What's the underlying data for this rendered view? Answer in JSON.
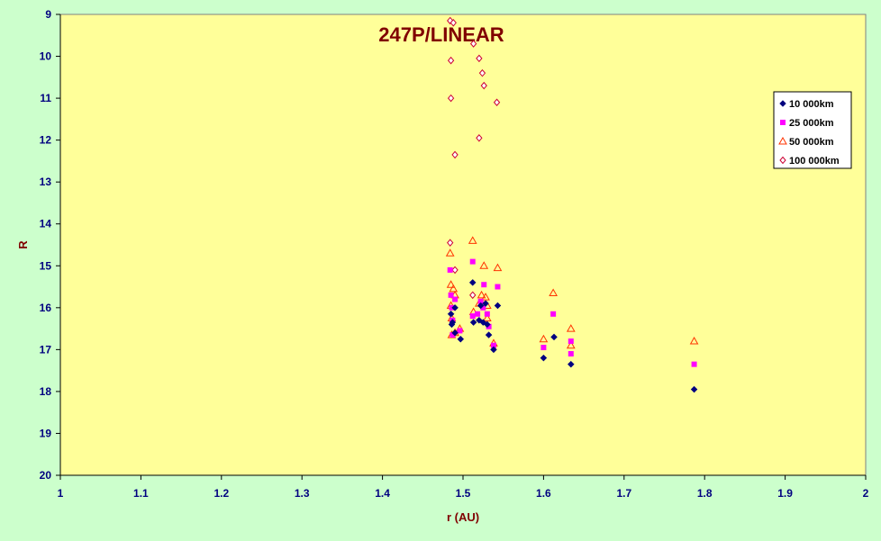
{
  "chart_data": {
    "type": "scatter",
    "title": "247P/LINEAR",
    "xlabel": "r (AU)",
    "ylabel": "R",
    "xlim": [
      1,
      2
    ],
    "ylim": [
      9,
      20
    ],
    "y_inverted": true,
    "x_ticks": [
      "1",
      "1.1",
      "1.2",
      "1.3",
      "1.4",
      "1.5",
      "1.6",
      "1.7",
      "1.8",
      "1.9",
      "2"
    ],
    "y_ticks": [
      "9",
      "10",
      "11",
      "12",
      "13",
      "14",
      "15",
      "16",
      "17",
      "18",
      "19",
      "20"
    ],
    "grid": false,
    "legend_position": "right",
    "plot_background": "#ffff99",
    "page_background": "#ccffcc",
    "series": [
      {
        "name": "10 000km",
        "marker": "filled-diamond",
        "color": "#000080",
        "points": [
          [
            1.485,
            16.15
          ],
          [
            1.486,
            16.4
          ],
          [
            1.487,
            16.35
          ],
          [
            1.49,
            16.0
          ],
          [
            1.49,
            16.6
          ],
          [
            1.497,
            16.75
          ],
          [
            1.512,
            15.4
          ],
          [
            1.513,
            16.35
          ],
          [
            1.52,
            16.3
          ],
          [
            1.522,
            15.95
          ],
          [
            1.525,
            16.35
          ],
          [
            1.528,
            15.9
          ],
          [
            1.53,
            16.4
          ],
          [
            1.532,
            16.65
          ],
          [
            1.538,
            17.0
          ],
          [
            1.543,
            15.95
          ],
          [
            1.6,
            17.2
          ],
          [
            1.613,
            16.7
          ],
          [
            1.634,
            17.35
          ],
          [
            1.787,
            17.95
          ]
        ]
      },
      {
        "name": "25 000km",
        "marker": "filled-square",
        "color": "#ff00ff",
        "points": [
          [
            1.484,
            15.1
          ],
          [
            1.485,
            15.7
          ],
          [
            1.486,
            16.0
          ],
          [
            1.487,
            16.3
          ],
          [
            1.487,
            16.65
          ],
          [
            1.49,
            15.8
          ],
          [
            1.496,
            16.55
          ],
          [
            1.512,
            14.9
          ],
          [
            1.512,
            16.2
          ],
          [
            1.518,
            16.15
          ],
          [
            1.522,
            15.85
          ],
          [
            1.525,
            16.0
          ],
          [
            1.526,
            15.45
          ],
          [
            1.53,
            16.15
          ],
          [
            1.532,
            16.45
          ],
          [
            1.538,
            16.9
          ],
          [
            1.543,
            15.5
          ],
          [
            1.6,
            16.95
          ],
          [
            1.612,
            16.15
          ],
          [
            1.634,
            16.8
          ],
          [
            1.634,
            17.1
          ],
          [
            1.787,
            17.35
          ]
        ]
      },
      {
        "name": "50 000km",
        "marker": "open-triangle",
        "color": "#ff3300",
        "points": [
          [
            1.484,
            14.7
          ],
          [
            1.485,
            15.45
          ],
          [
            1.485,
            15.95
          ],
          [
            1.486,
            16.25
          ],
          [
            1.486,
            16.65
          ],
          [
            1.488,
            15.55
          ],
          [
            1.49,
            15.7
          ],
          [
            1.49,
            16.6
          ],
          [
            1.496,
            16.5
          ],
          [
            1.512,
            14.4
          ],
          [
            1.513,
            16.1
          ],
          [
            1.52,
            15.9
          ],
          [
            1.523,
            15.7
          ],
          [
            1.526,
            15.0
          ],
          [
            1.528,
            15.75
          ],
          [
            1.53,
            15.95
          ],
          [
            1.53,
            16.25
          ],
          [
            1.538,
            16.85
          ],
          [
            1.543,
            15.05
          ],
          [
            1.6,
            16.75
          ],
          [
            1.612,
            15.65
          ],
          [
            1.634,
            16.5
          ],
          [
            1.634,
            16.9
          ],
          [
            1.787,
            16.8
          ]
        ]
      },
      {
        "name": "100 000km",
        "marker": "open-diamond",
        "color": "#cc0033",
        "points": [
          [
            1.484,
            9.15
          ],
          [
            1.488,
            9.2
          ],
          [
            1.485,
            10.1
          ],
          [
            1.485,
            11.0
          ],
          [
            1.49,
            12.35
          ],
          [
            1.484,
            14.45
          ],
          [
            1.49,
            15.1
          ],
          [
            1.513,
            9.7
          ],
          [
            1.52,
            10.05
          ],
          [
            1.524,
            10.4
          ],
          [
            1.526,
            10.7
          ],
          [
            1.52,
            11.95
          ],
          [
            1.542,
            11.1
          ],
          [
            1.512,
            15.7
          ]
        ]
      }
    ]
  }
}
